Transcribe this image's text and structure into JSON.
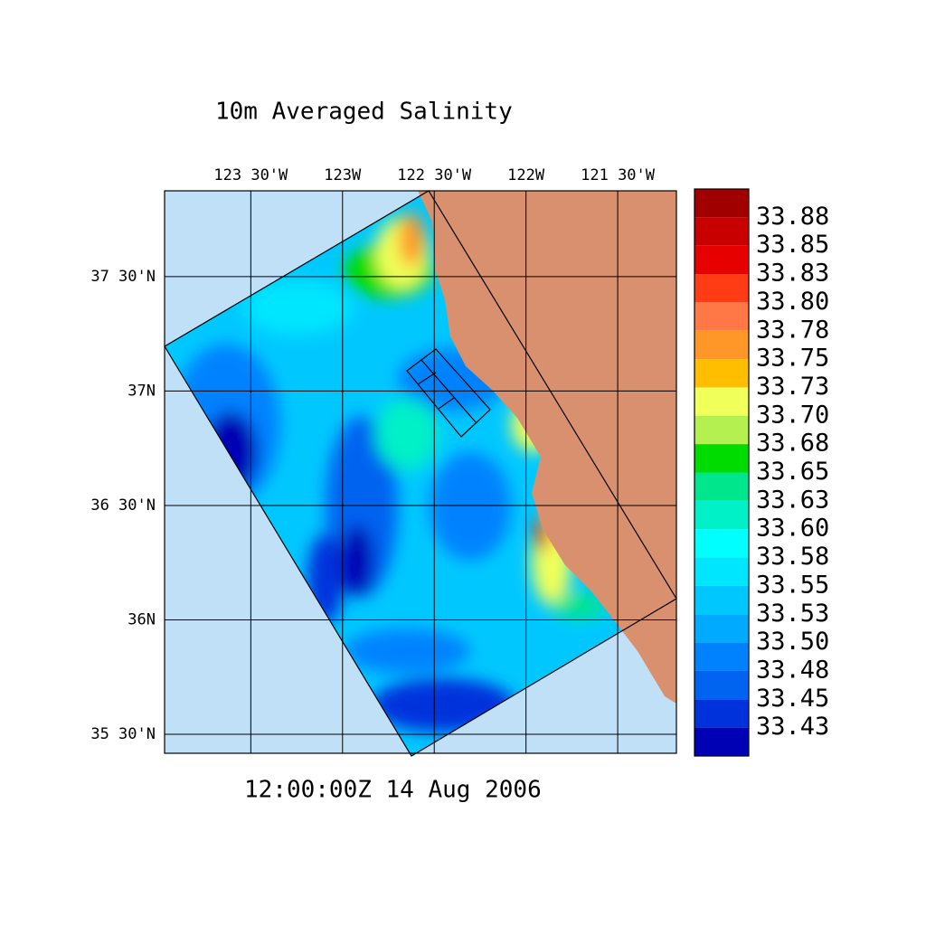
{
  "title": "10m Averaged Salinity",
  "timestamp": "12:00:00Z  14 Aug 2006",
  "map": {
    "xlim": [
      -123.97,
      -121.18
    ],
    "ylim": [
      35.417,
      37.875
    ],
    "xticks": [
      {
        "value": -123.5,
        "label": "123 30'W"
      },
      {
        "value": -123,
        "label": "123W"
      },
      {
        "value": -122.5,
        "label": "122 30'W"
      },
      {
        "value": -122,
        "label": "122W"
      },
      {
        "value": -121.5,
        "label": "121 30'W"
      }
    ],
    "yticks": [
      {
        "value": 37.5,
        "label": "37 30'N"
      },
      {
        "value": 37,
        "label": "37N"
      },
      {
        "value": 36.5,
        "label": "36 30'N"
      },
      {
        "value": 36,
        "label": "36N"
      },
      {
        "value": 35.5,
        "label": "35 30'N"
      }
    ]
  },
  "colorbar": {
    "labels": [
      "33.88",
      "33.85",
      "33.83",
      "33.80",
      "33.78",
      "33.75",
      "33.73",
      "33.70",
      "33.68",
      "33.65",
      "33.63",
      "33.60",
      "33.58",
      "33.55",
      "33.53",
      "33.50",
      "33.48",
      "33.45",
      "33.43"
    ],
    "colors": [
      "#a00000",
      "#c80000",
      "#e60000",
      "#ff3c14",
      "#ff7846",
      "#ff9628",
      "#ffbe00",
      "#f0ff5a",
      "#b4f050",
      "#00dc00",
      "#00e68c",
      "#00f0c8",
      "#00ffff",
      "#00e6ff",
      "#00c8ff",
      "#00aaff",
      "#0082ff",
      "#0064f0",
      "#0032dc",
      "#0000b4"
    ]
  }
}
